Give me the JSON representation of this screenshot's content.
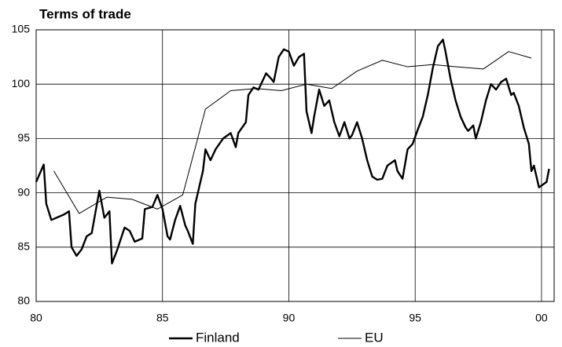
{
  "chart_data": {
    "type": "line",
    "title": "Terms of trade",
    "series": [
      {
        "name": "Finland",
        "color": "#000000",
        "width": 2.4,
        "x": [
          80.0,
          80.3,
          80.4,
          80.6,
          80.7,
          81.1,
          81.3,
          81.4,
          81.6,
          81.8,
          82.0,
          82.2,
          82.5,
          82.7,
          82.9,
          83.0,
          83.2,
          83.5,
          83.7,
          83.9,
          84.2,
          84.3,
          84.6,
          84.8,
          85.0,
          85.2,
          85.3,
          85.5,
          85.7,
          85.9,
          86.0,
          86.2,
          86.3,
          86.6,
          86.7,
          86.9,
          87.1,
          87.4,
          87.7,
          87.9,
          88.0,
          88.3,
          88.4,
          88.6,
          88.8,
          89.1,
          89.3,
          89.4,
          89.6,
          89.8,
          90.0,
          90.2,
          90.4,
          90.6,
          90.7,
          90.9,
          91.0,
          91.2,
          91.4,
          91.6,
          91.8,
          92.0,
          92.2,
          92.4,
          92.5,
          92.7,
          92.9,
          93.1,
          93.3,
          93.5,
          93.7,
          93.9,
          94.2,
          94.3,
          94.5,
          94.7,
          94.9,
          95.1,
          95.3,
          95.5,
          95.7,
          95.9,
          96.1,
          96.2,
          96.4,
          96.6,
          96.8,
          97.0,
          97.1,
          97.3,
          97.4,
          97.6,
          97.8,
          98.0,
          98.2,
          98.4,
          98.6,
          98.8,
          98.9,
          99.1,
          99.3,
          99.5,
          99.6,
          99.7,
          99.9,
          100.2,
          100.3
        ],
        "values": [
          91,
          92.6,
          89,
          87.5,
          87.6,
          88,
          88.3,
          85,
          84.2,
          84.8,
          86,
          86.3,
          90.2,
          87.7,
          88.3,
          83.5,
          84.7,
          86.8,
          86.5,
          85.5,
          85.8,
          88.5,
          88.7,
          89.8,
          88.5,
          86,
          85.7,
          87.5,
          88.8,
          87,
          86.5,
          85.3,
          89,
          92,
          94,
          93,
          94,
          95,
          95.5,
          94.2,
          95.5,
          96.5,
          99,
          99.7,
          99.5,
          101,
          100.5,
          100.2,
          102.5,
          103.2,
          103,
          101.7,
          102.5,
          102.8,
          97.5,
          95.5,
          97,
          99.5,
          98,
          98.5,
          96.5,
          95.2,
          96.5,
          95,
          95.3,
          96.5,
          95,
          93,
          91.5,
          91.2,
          91.3,
          92.5,
          93,
          92,
          91.3,
          94,
          94.5,
          95.8,
          97,
          99,
          101.5,
          103.5,
          104.1,
          103,
          100.5,
          98.5,
          97,
          96,
          95.7,
          96.2,
          95,
          96.5,
          98.5,
          100,
          99.5,
          100.2,
          100.5,
          99,
          99.2,
          98,
          96,
          94.5,
          92,
          92.5,
          90.5,
          91,
          92.2
        ]
      },
      {
        "name": "EU",
        "color": "#000000",
        "width": 1,
        "x": [
          80.7,
          81.7,
          82.8,
          83.8,
          84.8,
          85.8,
          86.7,
          87.7,
          88.7,
          89.7,
          90.7,
          91.7,
          92.7,
          93.7,
          94.7,
          95.7,
          96.6,
          97.7,
          98.7,
          99.6
        ],
        "values": [
          92,
          88.1,
          89.6,
          89.4,
          88.5,
          89.8,
          97.7,
          99.4,
          99.6,
          99.4,
          100,
          99.6,
          101.2,
          102.2,
          101.6,
          101.8,
          101.6,
          101.4,
          103,
          102.4
        ]
      }
    ],
    "xlim": [
      80,
      100.5
    ],
    "xticks": [
      80,
      85,
      90,
      95,
      {
        "value": 100,
        "label": "00"
      }
    ],
    "ylim": [
      80,
      105
    ],
    "yticks": [
      80,
      85,
      90,
      95,
      100,
      105
    ],
    "grid": true
  }
}
